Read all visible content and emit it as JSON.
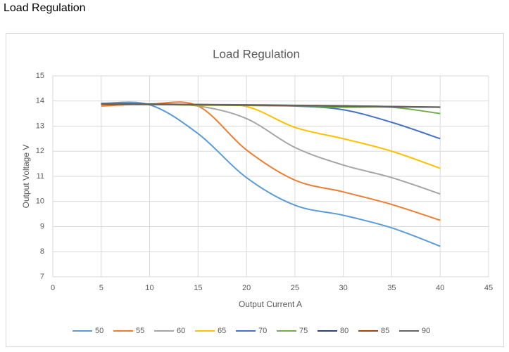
{
  "header": {
    "title": "Load Regulation"
  },
  "chart_data": {
    "type": "line",
    "title": "Load Regulation",
    "x_label": "Output Current  A",
    "y_label": "Output Voltage  V",
    "x": [
      5,
      10,
      15,
      20,
      25,
      30,
      35,
      40
    ],
    "series": [
      {
        "name": "50",
        "color": "#5b9bd5",
        "values": [
          13.9,
          13.85,
          12.7,
          10.95,
          9.85,
          9.45,
          8.95,
          8.22
        ]
      },
      {
        "name": "55",
        "color": "#ed7d31",
        "values": [
          13.8,
          13.88,
          13.8,
          12.05,
          10.85,
          10.38,
          9.88,
          9.25
        ]
      },
      {
        "name": "60",
        "color": "#a5a5a5",
        "values": [
          13.9,
          13.88,
          13.8,
          13.3,
          12.15,
          11.45,
          10.95,
          10.3
        ]
      },
      {
        "name": "65",
        "color": "#ffc000",
        "values": [
          13.88,
          13.87,
          13.83,
          13.78,
          12.95,
          12.5,
          12.0,
          11.32
        ]
      },
      {
        "name": "70",
        "color": "#4472c4",
        "values": [
          13.9,
          13.87,
          13.85,
          13.83,
          13.8,
          13.65,
          13.15,
          12.5
        ]
      },
      {
        "name": "75",
        "color": "#70ad47",
        "values": [
          13.87,
          13.86,
          13.84,
          13.82,
          13.8,
          13.75,
          13.75,
          13.5
        ]
      },
      {
        "name": "80",
        "color": "#264478",
        "values": [
          13.88,
          13.87,
          13.86,
          13.84,
          13.82,
          13.8,
          13.77,
          13.75
        ]
      },
      {
        "name": "85",
        "color": "#9e480e",
        "values": [
          13.87,
          13.86,
          13.85,
          13.84,
          13.82,
          13.8,
          13.78,
          13.76
        ]
      },
      {
        "name": "90",
        "color": "#636363",
        "values": [
          13.9,
          13.88,
          13.86,
          13.85,
          13.83,
          13.81,
          13.78,
          13.75
        ]
      }
    ],
    "xlim": [
      0,
      45
    ],
    "xticks": [
      0,
      5,
      10,
      15,
      20,
      25,
      30,
      35,
      40,
      45
    ],
    "ylim": [
      7,
      15
    ],
    "yticks": [
      7,
      8,
      9,
      10,
      11,
      12,
      13,
      14,
      15
    ],
    "grid": true,
    "legend": "bottom"
  }
}
